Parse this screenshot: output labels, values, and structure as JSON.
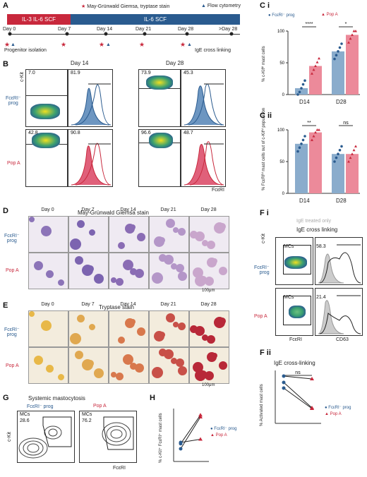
{
  "panels": {
    "A": "A",
    "B": "B",
    "Ci": "C i",
    "Cii": "C ii",
    "D": "D",
    "E": "E",
    "Fi": "F i",
    "Fii": "F ii",
    "G": "G",
    "H": "H"
  },
  "legendA": {
    "mgg": "May-Grünwald Giemsa, tryptase stain",
    "flow": "Flow cytometry"
  },
  "timeline": {
    "phase1": "IL-3 IL-6 SCF",
    "phase2": "IL-6 SCF",
    "days": [
      "Day 0",
      "Day 7",
      "Day 14",
      "Day 21",
      "Day 28",
      ">Day 28"
    ],
    "progenitor": "Progenitor isolation",
    "ige": "IgE cross linking"
  },
  "flowB": {
    "day14": "Day 14",
    "day28": "Day 28",
    "ckit": "c-Kit",
    "fceri": "FcεRI",
    "row1": "FcεRI⁻\nprog",
    "row2": "Pop A",
    "vals": [
      "7.0",
      "81.9",
      "73.9",
      "45.3",
      "42.8",
      "90.8",
      "96.6",
      "48.7"
    ]
  },
  "chartCi": {
    "legend1": "FcεRI⁻ prog",
    "legend2": "Pop A",
    "ylabel": "% c-Kitʰⁱ mast cells",
    "cats": [
      "D14",
      "D28"
    ],
    "sig": [
      "****",
      "*"
    ],
    "yticks": [
      "0",
      "50",
      "100"
    ]
  },
  "chartCii": {
    "ylabel": "% FcεRIʰⁱ mast cells out of c-Kitʰⁱ population",
    "cats": [
      "D14",
      "D28"
    ],
    "sig": [
      "**",
      "ns"
    ],
    "yticks": [
      "0",
      "50",
      "100"
    ]
  },
  "stainD": {
    "title": "May-Grünwald Giemsa stain",
    "days": [
      "Day 0",
      "Day 7",
      "Day 14",
      "Day 21",
      "Day 28"
    ],
    "row1": "FcεRI⁻\nprog",
    "row2": "Pop A",
    "scale": "100μm"
  },
  "stainE": {
    "title": "Tryptase stain",
    "days": [
      "Day 0",
      "Day 7",
      "Day 14",
      "Day 21",
      "Day 28"
    ],
    "row1": "FcεRI⁻\nprog",
    "row2": "Pop A",
    "scale": "100μm"
  },
  "flowFi": {
    "igeOnly": "IgE treated only",
    "igeCross": "IgE cross linking",
    "ckit": "c-Kit",
    "fceri": "FcεRI",
    "cd63": "CD63",
    "mcs": "MCs",
    "row1": "FcεRI⁻\nprog",
    "row2": "Pop A",
    "vals": [
      "58.3",
      "21.4"
    ]
  },
  "flowG": {
    "title": "Systemic mastocytosis",
    "col1": "FcεRI⁻ prog",
    "col2": "Pop A",
    "mcs": "MCs",
    "vals": [
      "28.6",
      "76.2"
    ],
    "ckit": "c-Kit",
    "fceri": "FcεRI"
  },
  "chartH": {
    "ylabel": "% c-Kit⁺ FcεRI⁺ mast cells",
    "legend1": "FcεRI⁻ prog",
    "legend2": "Pop A"
  },
  "chartFii": {
    "title": "IgE cross-linking",
    "ylabel": "% Activated mast cells",
    "sig": "ns",
    "legend1": "FcεRI⁻ prog",
    "legend2": "Pop A"
  },
  "colors": {
    "blue": "#2a5b8f",
    "red": "#c8283c",
    "blueBar": "#8aaccc",
    "redBar": "#ec8a9a"
  },
  "chart_data": [
    {
      "type": "bar",
      "title": "",
      "categories": [
        "D14",
        "D28"
      ],
      "series": [
        {
          "name": "FcεRI⁻ prog",
          "values": [
            10,
            68
          ]
        },
        {
          "name": "Pop A",
          "values": [
            45,
            94
          ]
        }
      ],
      "ylabel": "% c-Kitʰⁱ mast cells",
      "ylim": [
        0,
        100
      ]
    },
    {
      "type": "bar",
      "title": "",
      "categories": [
        "D14",
        "D28"
      ],
      "series": [
        {
          "name": "FcεRI⁻ prog",
          "values": [
            78,
            62
          ]
        },
        {
          "name": "Pop A",
          "values": [
            96,
            62
          ]
        }
      ],
      "ylabel": "% FcεRIʰⁱ mast cells out of c-Kitʰⁱ population",
      "ylim": [
        0,
        100
      ]
    },
    {
      "type": "line",
      "title": "",
      "series": [
        {
          "name": "FcεRI⁻ prog",
          "values": [
            [
              20,
              70
            ],
            [
              28,
              73
            ],
            [
              30,
              35
            ]
          ]
        },
        {
          "name": "Pop A",
          "values": [
            [
              75,
              78
            ],
            [
              55,
              76
            ]
          ]
        }
      ],
      "ylabel": "% c-Kit⁺ FcεRI⁺ mast cells"
    },
    {
      "type": "line",
      "title": "IgE cross-linking",
      "series": [
        {
          "name": "FcεRI⁻ prog",
          "values": [
            67,
            58,
            50
          ]
        },
        {
          "name": "Pop A",
          "values": [
            63,
            22,
            21
          ]
        }
      ],
      "ylabel": "% Activated mast cells"
    }
  ]
}
